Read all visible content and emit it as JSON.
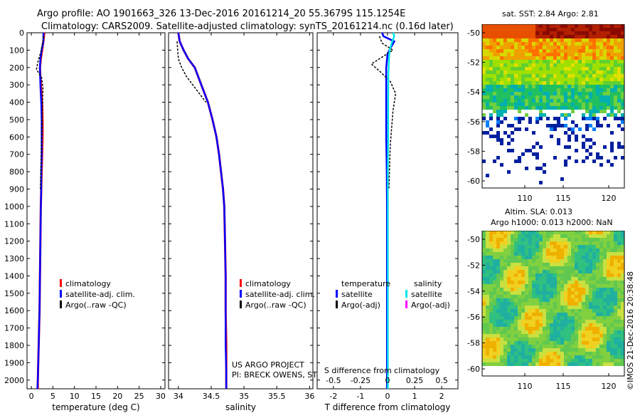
{
  "header": {
    "title_line1": "Argo profile: AO 1901663_326 13-Dec-2016 20161214_20 55.3679S 115.1254E",
    "title_line2": "Climatology: CARS2009. Satellite-adjusted climatology: synTS_20161214.nc (0.16d later)"
  },
  "colors": {
    "climatology": "#ff0000",
    "satellite": "#0000ff",
    "argo": "#000000",
    "salinity_satellite": "#00e5e5",
    "salinity_argo": "#ff00ff"
  },
  "chart_data": [
    {
      "type": "line",
      "name": "temperature-panel",
      "xlabel": "temperature (deg C)",
      "xlim": [
        -1,
        31
      ],
      "xticks": [
        "0",
        "5",
        "10",
        "15",
        "20",
        "25",
        "30"
      ],
      "xtick_values": [
        0,
        5,
        10,
        15,
        20,
        25,
        30
      ],
      "ylim": [
        0,
        2050
      ],
      "yticks": [
        "0",
        "100",
        "200",
        "300",
        "400",
        "500",
        "600",
        "700",
        "800",
        "900",
        "1000",
        "1100",
        "1200",
        "1300",
        "1400",
        "1500",
        "1600",
        "1700",
        "1800",
        "1900",
        "2000"
      ],
      "ytick_values": [
        0,
        100,
        200,
        300,
        400,
        500,
        600,
        700,
        800,
        900,
        1000,
        1100,
        1200,
        1300,
        1400,
        1500,
        1600,
        1700,
        1800,
        1900,
        2000
      ],
      "legend": [
        "climatology",
        "satellite-adj. clim.",
        "Argo(..raw -QC)"
      ],
      "series": [
        {
          "name": "climatology",
          "x": [
            3.0,
            2.8,
            2.5,
            2.2,
            2.0,
            2.2,
            2.5,
            2.6,
            2.6,
            2.5,
            2.4,
            2.3,
            2.2,
            2.1,
            2.0,
            1.9,
            1.8,
            1.7,
            1.6,
            1.5,
            1.5
          ],
          "y": [
            0,
            50,
            100,
            150,
            200,
            300,
            400,
            500,
            600,
            700,
            800,
            900,
            1000,
            1200,
            1400,
            1600,
            1700,
            1800,
            1900,
            2000,
            2050
          ]
        },
        {
          "name": "satellite-adj. clim.",
          "x": [
            2.8,
            2.8,
            2.4,
            2.1,
            2.0,
            2.1,
            2.3,
            2.4,
            2.4,
            2.4,
            2.3,
            2.3,
            2.2,
            2.1,
            2.0,
            1.9,
            1.8,
            1.7,
            1.6,
            1.5,
            1.4
          ],
          "y": [
            0,
            50,
            100,
            150,
            200,
            300,
            400,
            500,
            600,
            700,
            800,
            900,
            1000,
            1200,
            1400,
            1600,
            1700,
            1800,
            1900,
            2000,
            2050
          ]
        },
        {
          "name": "Argo(..raw -QC)",
          "x": [
            2.9,
            2.6,
            2.2,
            1.5,
            1.2,
            2.4,
            2.7,
            2.6,
            2.5,
            2.4,
            2.3,
            2.2,
            2.1
          ],
          "y": [
            20,
            60,
            110,
            170,
            210,
            260,
            320,
            400,
            500,
            600,
            700,
            800,
            900
          ]
        }
      ]
    },
    {
      "type": "line",
      "name": "salinity-panel",
      "xlabel": "salinity",
      "xlim": [
        33.85,
        36.05
      ],
      "xticks": [
        "34",
        "34.5",
        "35",
        "35.5",
        "36"
      ],
      "xtick_values": [
        34,
        34.5,
        35,
        35.5,
        36
      ],
      "ylim": [
        0,
        2050
      ],
      "legend": [
        "climatology",
        "satellite-adj. clim.",
        "Argo(..raw -QC)"
      ],
      "annotation": [
        "US ARGO PROJECT",
        "PI: BRECK OWENS, STEVE JAYNE, P.E. ROBBINS"
      ],
      "series": [
        {
          "name": "climatology",
          "x": [
            34.0,
            34.02,
            34.08,
            34.15,
            34.25,
            34.35,
            34.45,
            34.52,
            34.58,
            34.62,
            34.65,
            34.68,
            34.7,
            34.71,
            34.72,
            34.72,
            34.73,
            34.73,
            34.73
          ],
          "y": [
            0,
            50,
            100,
            150,
            200,
            300,
            400,
            500,
            600,
            700,
            800,
            900,
            1000,
            1200,
            1400,
            1600,
            1800,
            1950,
            2050
          ]
        },
        {
          "name": "satellite-adj. clim.",
          "x": [
            34.0,
            34.02,
            34.08,
            34.15,
            34.25,
            34.35,
            34.45,
            34.52,
            34.58,
            34.62,
            34.65,
            34.68,
            34.7,
            34.71,
            34.72,
            34.72,
            34.72,
            34.73,
            34.73
          ],
          "y": [
            0,
            50,
            100,
            150,
            200,
            300,
            400,
            500,
            600,
            700,
            800,
            900,
            1000,
            1200,
            1400,
            1600,
            1800,
            1950,
            2050
          ]
        },
        {
          "name": "Argo(..raw -QC)",
          "x": [
            33.98,
            33.99,
            34.0,
            34.05,
            34.12,
            34.22,
            34.32,
            34.42
          ],
          "y": [
            50,
            100,
            150,
            200,
            250,
            300,
            350,
            400
          ]
        }
      ]
    },
    {
      "type": "line",
      "name": "difference-panel",
      "xlabel": "T difference from climatology",
      "xlim": [
        -2.6,
        2.6
      ],
      "xticks": [
        "-2",
        "-1",
        "0",
        "1",
        "2"
      ],
      "xtick_values": [
        -2,
        -1,
        0,
        1,
        2
      ],
      "top_xlabel": "S difference from climatology",
      "top_xticks": [
        "-0.5",
        "-0.25",
        "0",
        "0.25",
        "0.5"
      ],
      "top_xtick_values": [
        -2,
        -1,
        0,
        1,
        2
      ],
      "ylim": [
        0,
        2050
      ],
      "legend_temperature": [
        "temperature",
        "satellite",
        "Argo(-adj)"
      ],
      "legend_salinity": [
        "salinity",
        "satellite",
        "Argo(-adj)"
      ],
      "series": [
        {
          "name": "temperature satellite",
          "x": [
            -0.2,
            -0.15,
            0.25,
            0.1,
            0.0,
            -0.05,
            -0.05,
            -0.05,
            -0.03,
            -0.02,
            -0.02,
            -0.02,
            -0.02,
            -0.02
          ],
          "y": [
            0,
            20,
            50,
            90,
            120,
            200,
            400,
            600,
            800,
            1000,
            1200,
            1500,
            1800,
            2050
          ]
        },
        {
          "name": "temperature Argo(-adj)",
          "x": [
            -0.3,
            -0.2,
            0.2,
            -0.6,
            -0.3,
            0.1,
            0.3,
            0.2,
            0.15,
            0.1,
            0.08,
            0.05
          ],
          "y": [
            20,
            60,
            100,
            180,
            220,
            280,
            350,
            450,
            550,
            650,
            750,
            900
          ]
        },
        {
          "name": "salinity satellite",
          "x": [
            0.2,
            0.25,
            0.15,
            0.08,
            0.05,
            0.03,
            0.02,
            0.02,
            0.01,
            0.01,
            0.01,
            0.01,
            0.01,
            0.01
          ],
          "y": [
            0,
            20,
            60,
            100,
            150,
            250,
            400,
            600,
            800,
            1000,
            1200,
            1500,
            1800,
            2050
          ]
        }
      ]
    }
  ],
  "maps": {
    "sst": {
      "title": "sat. SST: 2.84  Argo: 2.81",
      "yticks": [
        "-50",
        "-52",
        "-54",
        "-56",
        "-58",
        "-60"
      ],
      "xticks": [
        "110",
        "115",
        "120"
      ]
    },
    "sla": {
      "title_line1": "Altim. SLA: 0.013",
      "title_line2": "Argo h1000: 0.013 h2000: NaN",
      "yticks": [
        "-50",
        "-52",
        "-54",
        "-56",
        "-58",
        "-60"
      ],
      "xticks": [
        "110",
        "115",
        "120"
      ]
    },
    "credit": "©IMOS 21-Dec-2016 20:38:48"
  }
}
